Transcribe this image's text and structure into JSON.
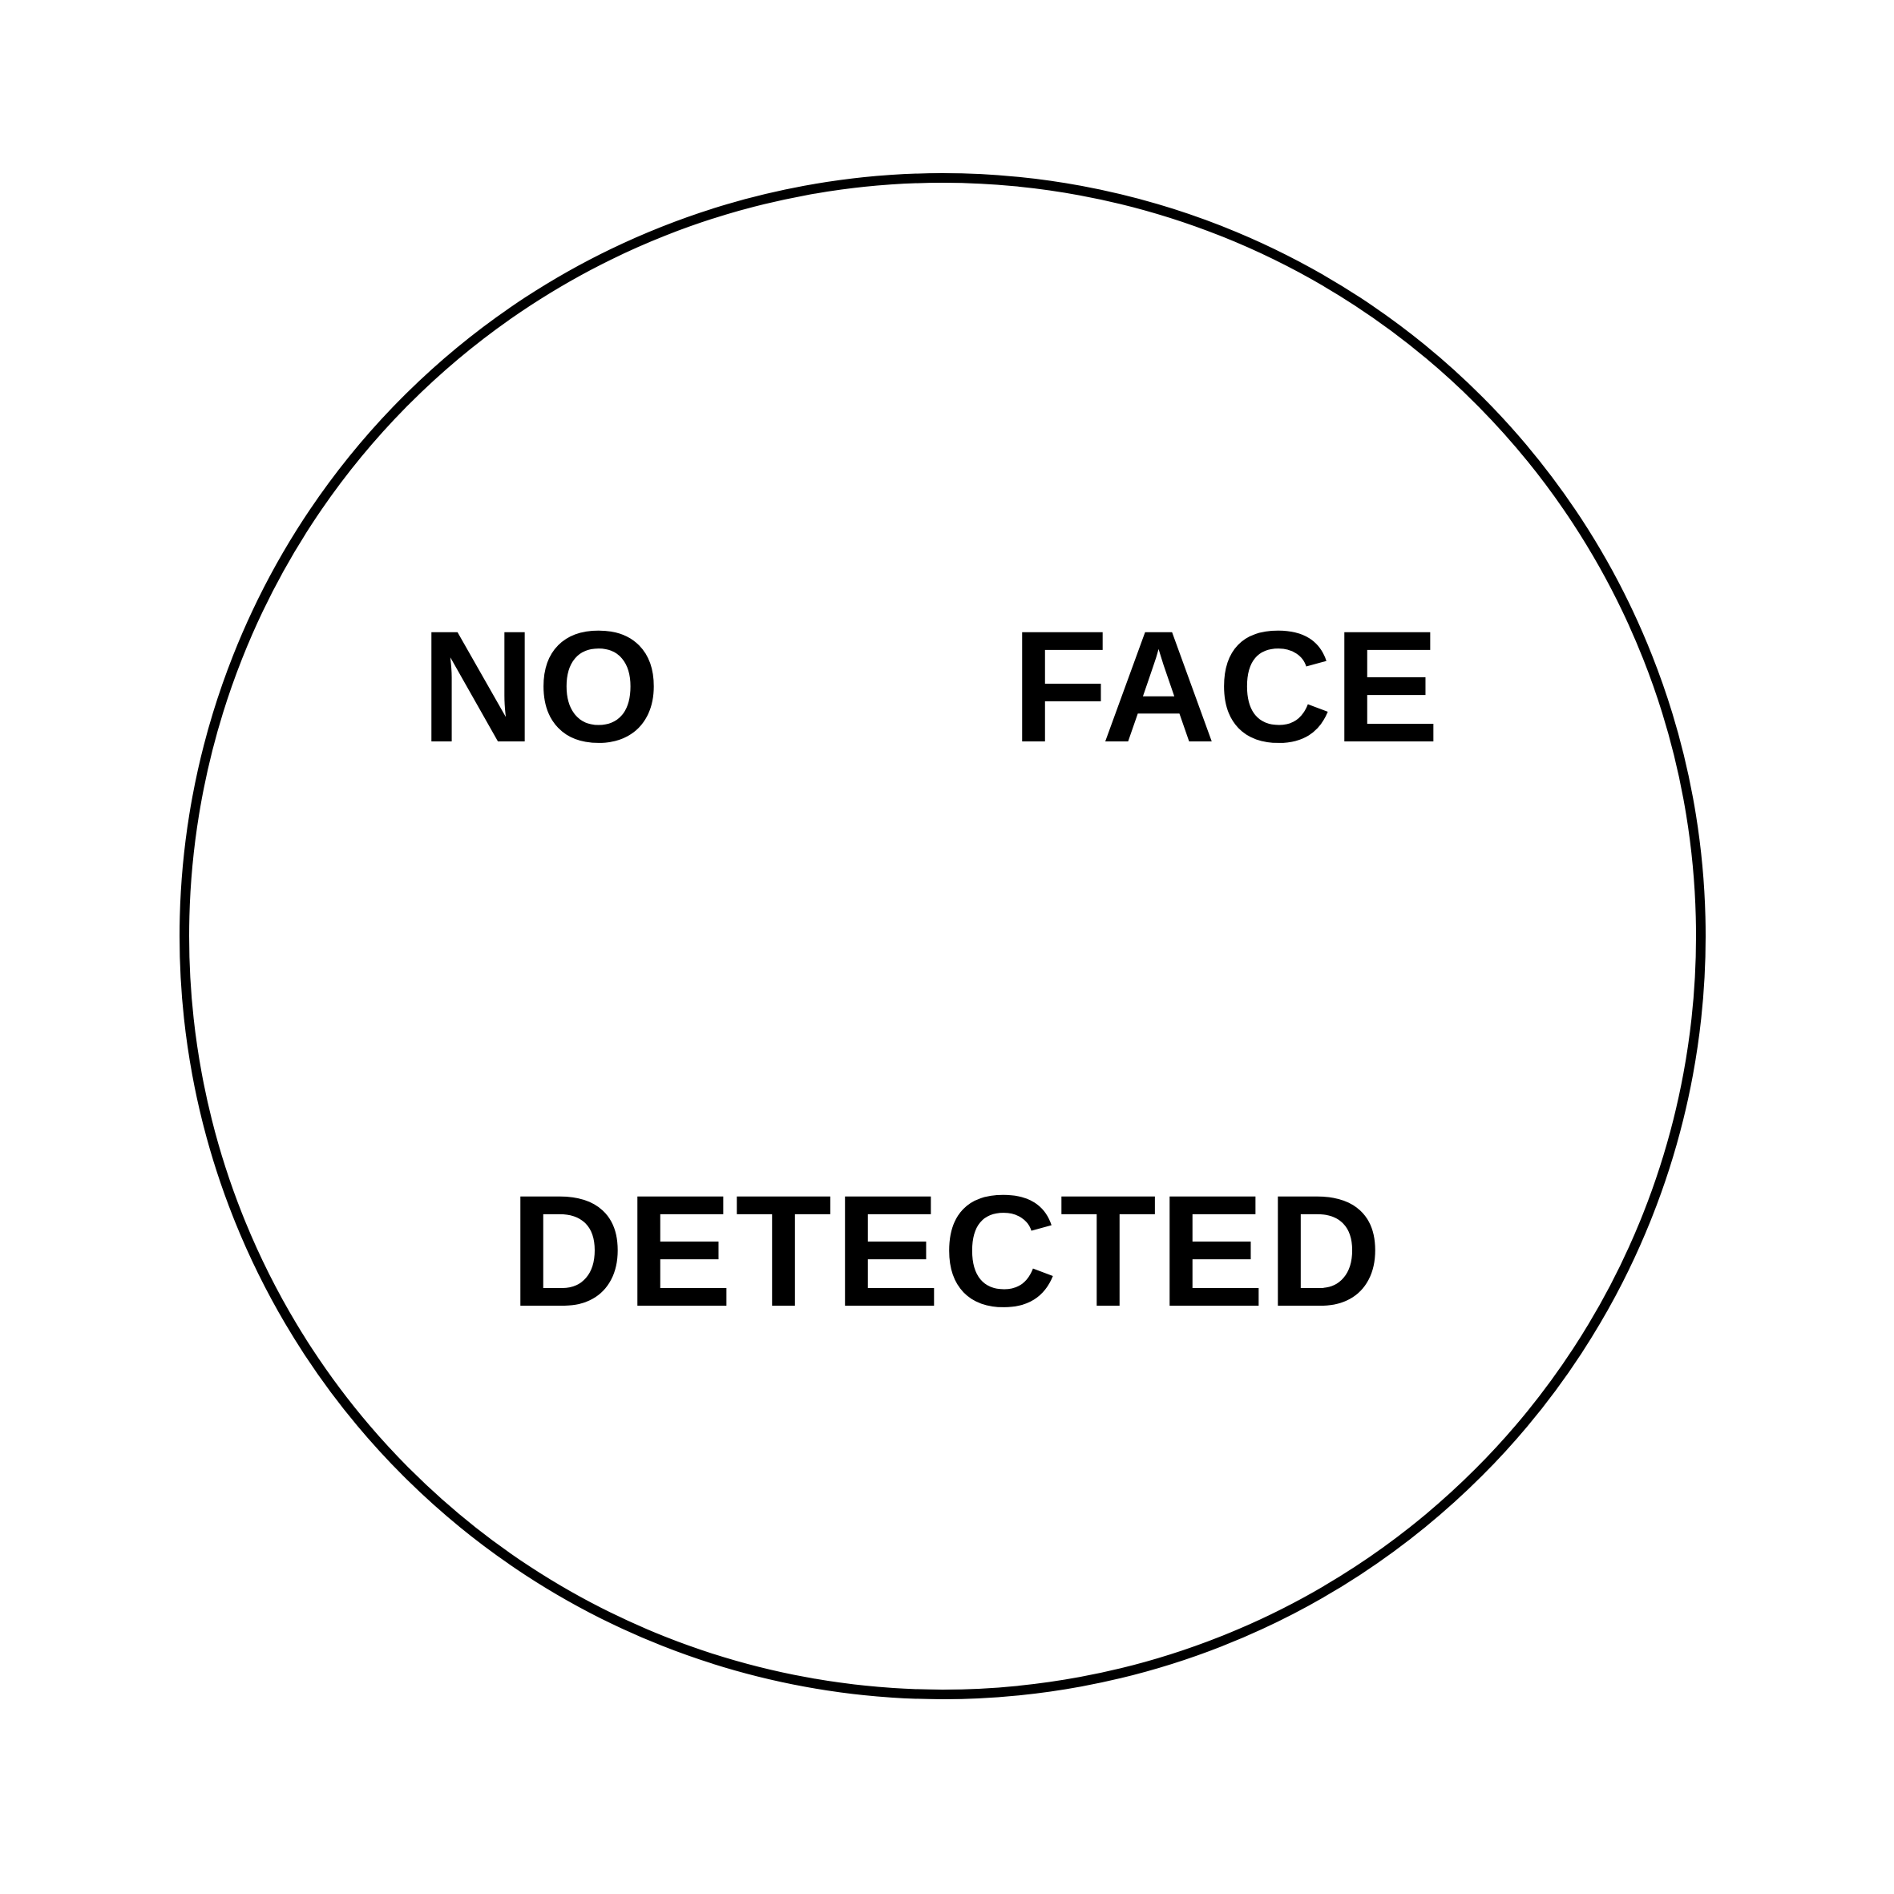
{
  "status": {
    "line1_word1": "NO",
    "line1_word2": "FACE",
    "line2": "DETECTED"
  },
  "colors": {
    "background": "#ffffff",
    "foreground": "#000000"
  },
  "icons": {
    "frame": "face-outline-circle"
  }
}
